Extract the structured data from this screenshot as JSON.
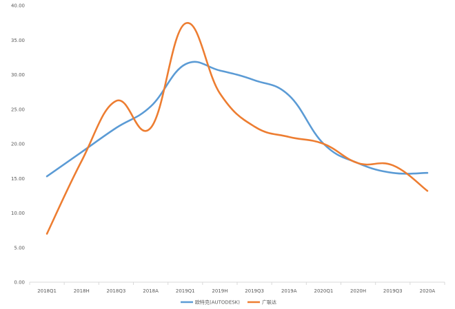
{
  "chart_data": {
    "type": "line",
    "title": "",
    "xlabel": "",
    "ylabel": "",
    "categories": [
      "2018Q1",
      "2018H",
      "2018Q3",
      "2018A",
      "2019Q1",
      "2019H",
      "2019Q3",
      "2019A",
      "2020Q1",
      "2020H",
      "2019Q3",
      "2020A"
    ],
    "ylim": [
      0,
      40
    ],
    "yticks": [
      "0.00",
      "5.00",
      "10.00",
      "15.00",
      "20.00",
      "25.00",
      "30.00",
      "35.00",
      "40.00"
    ],
    "ytick_values": [
      0,
      5,
      10,
      15,
      20,
      25,
      30,
      35,
      40
    ],
    "grid": false,
    "legend_position": "bottom",
    "series": [
      {
        "name": "欧特克(AUTODESK)",
        "color": "#5B9BD5",
        "values": [
          15.3,
          18.8,
          22.3,
          25.4,
          31.5,
          30.6,
          29.2,
          27.0,
          20.0,
          17.2,
          15.8,
          15.8
        ]
      },
      {
        "name": "广联达",
        "color": "#ED7D31",
        "values": [
          7.0,
          17.5,
          26.2,
          22.3,
          37.4,
          27.3,
          22.5,
          21.0,
          20.0,
          17.2,
          16.9,
          13.2
        ]
      }
    ]
  }
}
